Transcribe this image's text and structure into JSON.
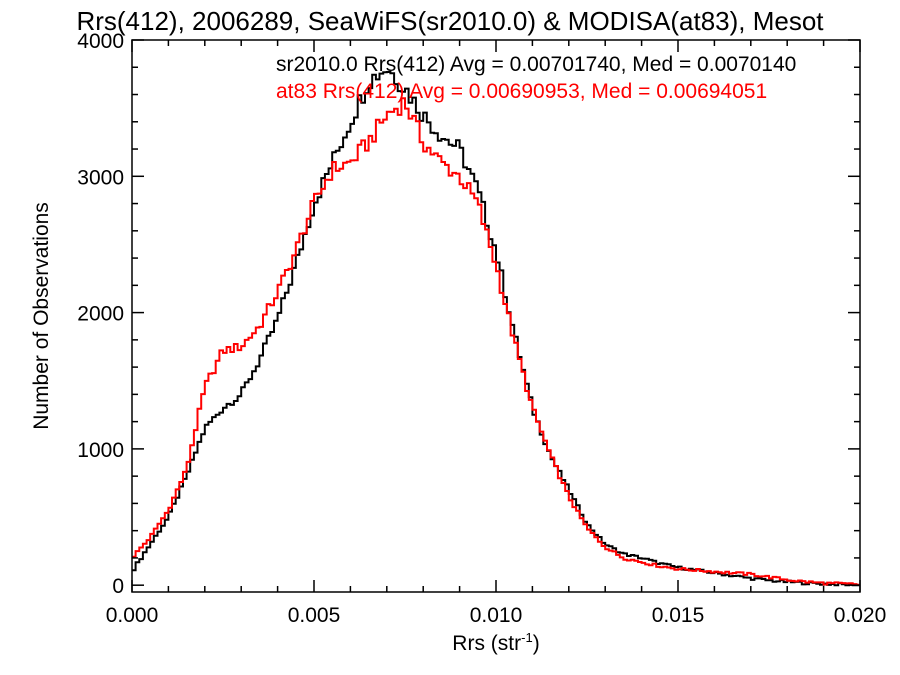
{
  "chart_data": {
    "type": "line",
    "title": "Rrs(412), 2006289, SeaWiFS(sr2010.0) & MODISA(at83), Mesot",
    "xlabel": "Rrs (str",
    "xlabel_sup": "-1",
    "xlabel_end": ")",
    "ylabel": "Number of Observations",
    "xlim": [
      0.0,
      0.02
    ],
    "ylim": [
      -50,
      4000
    ],
    "x_ticks": [
      0.0,
      0.005,
      0.01,
      0.015,
      0.02
    ],
    "x_tick_labels": [
      "0.000",
      "0.005",
      "0.010",
      "0.015",
      "0.020"
    ],
    "y_ticks": [
      0,
      1000,
      2000,
      3000,
      4000
    ],
    "y_tick_labels": [
      "0",
      "1000",
      "2000",
      "3000",
      "4000"
    ],
    "grid": false,
    "stats": [
      {
        "text": "sr2010.0 Rrs(412) Avg = 0.00701740, Med = 0.0070140",
        "color": "#000000"
      },
      {
        "text": "at83 Rrs(412) Avg = 0.00690953, Med = 0.00694051",
        "color": "#ff0000"
      }
    ],
    "series": [
      {
        "color": "#000000",
        "x": [
          0.0,
          0.0005,
          0.001,
          0.0015,
          0.002,
          0.0025,
          0.003,
          0.0035,
          0.004,
          0.0045,
          0.005,
          0.0055,
          0.006,
          0.0065,
          0.007,
          0.0075,
          0.008,
          0.0085,
          0.009,
          0.0095,
          0.01,
          0.0105,
          0.011,
          0.0115,
          0.012,
          0.0125,
          0.013,
          0.0135,
          0.014,
          0.0145,
          0.015,
          0.0155,
          0.016,
          0.0165,
          0.017,
          0.0175,
          0.018,
          0.0185,
          0.019,
          0.0195,
          0.02
        ],
        "y": [
          100,
          300,
          500,
          800,
          1150,
          1300,
          1400,
          1650,
          1950,
          2350,
          2800,
          3100,
          3400,
          3700,
          3800,
          3650,
          3450,
          3300,
          3200,
          2900,
          2450,
          1850,
          1300,
          950,
          700,
          450,
          300,
          230,
          200,
          160,
          130,
          110,
          90,
          70,
          50,
          35,
          25,
          15,
          10,
          5,
          0
        ]
      },
      {
        "color": "#ff0000",
        "x": [
          0.0,
          0.0005,
          0.001,
          0.0015,
          0.002,
          0.0025,
          0.003,
          0.0035,
          0.004,
          0.0045,
          0.005,
          0.0055,
          0.006,
          0.0065,
          0.007,
          0.0075,
          0.008,
          0.0085,
          0.009,
          0.0095,
          0.01,
          0.0105,
          0.011,
          0.0115,
          0.012,
          0.0125,
          0.013,
          0.0135,
          0.014,
          0.0145,
          0.015,
          0.0155,
          0.016,
          0.0165,
          0.017,
          0.0175,
          0.018,
          0.0185,
          0.019,
          0.0195,
          0.02
        ],
        "y": [
          200,
          350,
          550,
          850,
          1450,
          1720,
          1750,
          1900,
          2150,
          2450,
          2800,
          3050,
          3100,
          3250,
          3450,
          3550,
          3250,
          3100,
          3000,
          2800,
          2350,
          1800,
          1300,
          950,
          650,
          420,
          280,
          200,
          170,
          140,
          120,
          110,
          100,
          90,
          80,
          60,
          40,
          25,
          15,
          10,
          5
        ]
      }
    ]
  }
}
